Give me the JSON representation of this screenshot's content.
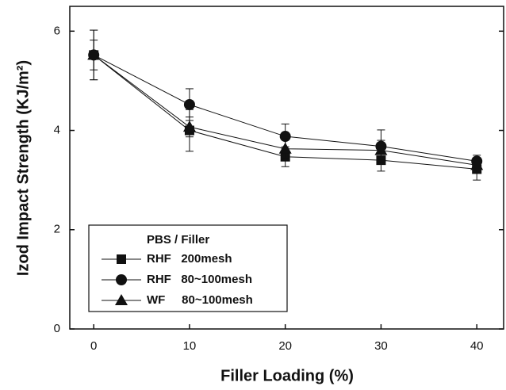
{
  "chart_data": {
    "type": "line",
    "x_label": "Filler Loading (%)",
    "y_label": "Izod Impact Strength (KJ/m²)",
    "legend_title": "PBS / Filler",
    "x": [
      0,
      10,
      20,
      30,
      40
    ],
    "xlim": [
      -2.5,
      42.8
    ],
    "xticks": [
      0,
      10,
      20,
      30,
      40
    ],
    "ylim": [
      0,
      6.5
    ],
    "yticks": [
      0,
      2,
      4,
      6
    ],
    "legend": "lower left",
    "series": [
      {
        "name": "RHF   200mesh",
        "marker": "square",
        "color": "#111",
        "values": [
          5.52,
          4.0,
          3.47,
          3.4,
          3.22
        ],
        "errors": [
          0.5,
          0.42,
          0.2,
          0.22,
          0.22
        ]
      },
      {
        "name": "RHF   80~100mesh",
        "marker": "circle",
        "color": "#111",
        "values": [
          5.52,
          4.52,
          3.88,
          3.68,
          3.38
        ],
        "errors": [
          0.5,
          0.32,
          0.25,
          0.33,
          0.12
        ]
      },
      {
        "name": "WF     80~100mesh",
        "marker": "triangle",
        "color": "#111",
        "values": [
          5.52,
          4.07,
          3.63,
          3.6,
          3.3
        ],
        "errors": [
          0.3,
          0.2,
          0.2,
          0.2,
          0.15
        ]
      }
    ]
  }
}
